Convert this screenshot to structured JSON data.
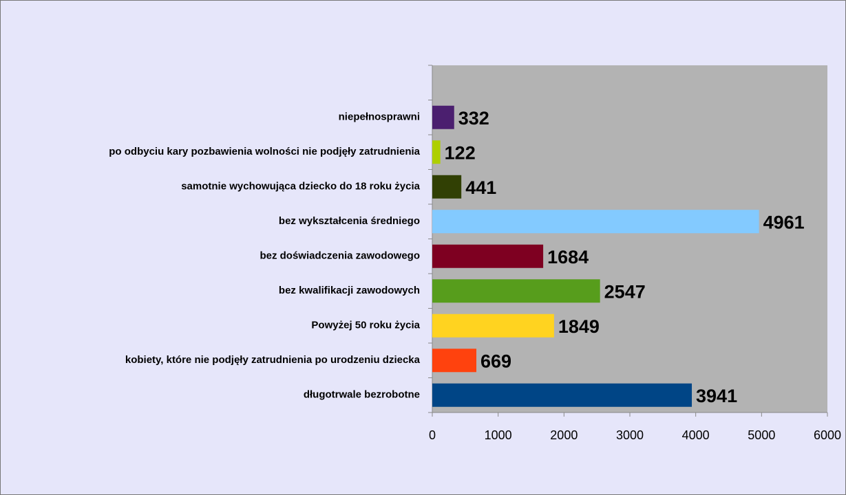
{
  "chart_data": {
    "type": "barh",
    "categories": [
      "długotrwale bezrobotne",
      "kobiety, które nie podjęły zatrudnienia po urodzeniu dziecka",
      "Powyżej 50 roku życia",
      "bez kwalifikacji zawodowych",
      "bez doświadczenia zawodowego",
      "bez wykształcenia średniego",
      "samotnie wychowująca dziecko do 18 roku życia",
      "po odbyciu kary pozbawienia wolności nie podjęły zatrudnienia",
      "niepełnosprawni",
      null
    ],
    "values": [
      3941,
      669,
      1849,
      2547,
      1684,
      4961,
      441,
      122,
      332,
      null
    ],
    "colors": [
      "#004586",
      "#ff420e",
      "#ffd320",
      "#579d1c",
      "#7e0021",
      "#83caff",
      "#314004",
      "#aecf00",
      "#4b1f6f",
      null
    ],
    "xlim": [
      0,
      6000
    ],
    "xticks": [
      0,
      1000,
      2000,
      3000,
      4000,
      5000,
      6000
    ]
  }
}
